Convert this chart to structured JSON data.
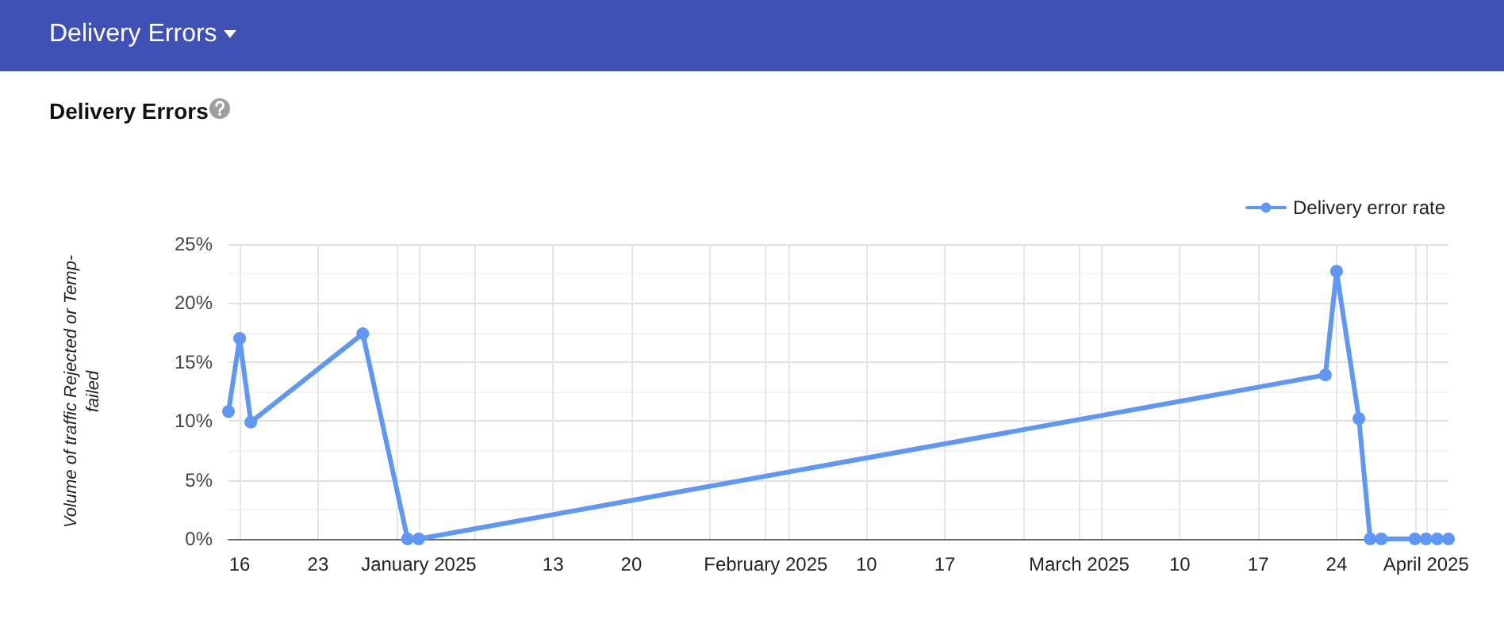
{
  "chart_data": {
    "type": "line",
    "title": "Delivery Errors",
    "ylabel": "Volume of traffic Rejected or Temp-failed",
    "annotations": [
      "Delivery Errors"
    ],
    "x": [
      "2024-12-15",
      "2024-12-16",
      "2024-12-17",
      "2024-12-27",
      "2024-12-31",
      "2025-01-01",
      "2025-03-23",
      "2025-03-24",
      "2025-03-26",
      "2025-03-27",
      "2025-03-28",
      "2025-03-31",
      "2025-04-01",
      "2025-04-02",
      "2025-04-03"
    ],
    "series": [
      {
        "name": "Delivery error rate",
        "color": "#5e97f6",
        "values": [
          10.8,
          17,
          9.9,
          17.4,
          0,
          0,
          13.9,
          22.7,
          10.2,
          0,
          0,
          0,
          0,
          0,
          0
        ]
      }
    ],
    "xlim": [
      "2024-12-15",
      "2025-04-03"
    ],
    "xticks": [
      {
        "value": "2024-12-16",
        "label": "16"
      },
      {
        "value": "2024-12-23",
        "label": "23"
      },
      {
        "value": "2024-12-30",
        "label": null
      },
      {
        "value": "2025-01-01",
        "label": "January 2025"
      },
      {
        "value": "2025-01-06",
        "label": null
      },
      {
        "value": "2025-01-13",
        "label": "13"
      },
      {
        "value": "2025-01-20",
        "label": "20"
      },
      {
        "value": "2025-01-27",
        "label": null
      },
      {
        "value": "2025-02-01",
        "label": "February 2025"
      },
      {
        "value": "2025-02-03",
        "label": null
      },
      {
        "value": "2025-02-10",
        "label": "10"
      },
      {
        "value": "2025-02-17",
        "label": "17"
      },
      {
        "value": "2025-02-24",
        "label": null
      },
      {
        "value": "2025-03-01",
        "label": "March 2025"
      },
      {
        "value": "2025-03-03",
        "label": null
      },
      {
        "value": "2025-03-10",
        "label": "10"
      },
      {
        "value": "2025-03-17",
        "label": "17"
      },
      {
        "value": "2025-03-24",
        "label": "24"
      },
      {
        "value": "2025-03-31",
        "label": null
      },
      {
        "value": "2025-04-01",
        "label": "April 2025"
      }
    ],
    "ylim": [
      0,
      25
    ],
    "yticks": [
      {
        "value": 0,
        "label": "0%"
      },
      {
        "value": 2.5,
        "label": null
      },
      {
        "value": 5,
        "label": "5%"
      },
      {
        "value": 7.5,
        "label": null
      },
      {
        "value": 10,
        "label": "10%"
      },
      {
        "value": 12.5,
        "label": null
      },
      {
        "value": 15,
        "label": "15%"
      },
      {
        "value": 17.5,
        "label": null
      },
      {
        "value": 20,
        "label": "20%"
      },
      {
        "value": 22.5,
        "label": null
      },
      {
        "value": 25,
        "label": "25%"
      }
    ],
    "grid": true,
    "legend": "top right",
    "marker": "circle",
    "line_style": "solid"
  }
}
